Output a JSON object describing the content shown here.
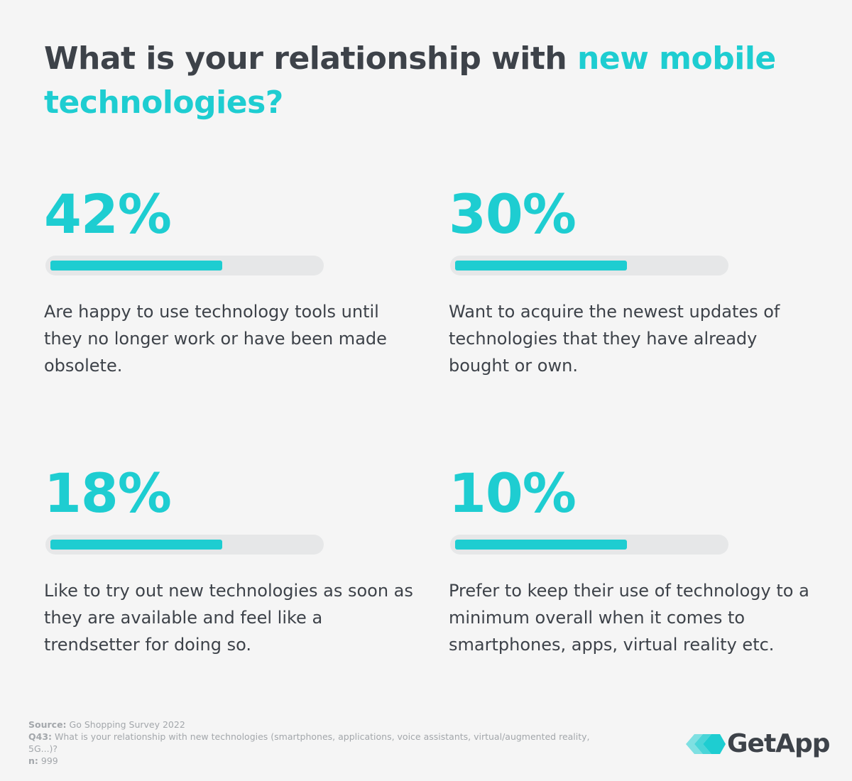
{
  "header": {
    "title_start": "What is your relationship with ",
    "title_highlight": "new mobile technologies?"
  },
  "items": [
    {
      "stat": "42%",
      "text": "Are happy to use technology tools until they no longer work or have been made obsolete."
    },
    {
      "stat": "30%",
      "text": "Want to acquire the newest updates of technologies that they have already bought or own."
    },
    {
      "stat": "18%",
      "text": "Like to try out new technologies as soon as they are available and feel like a trendsetter for doing so."
    },
    {
      "stat": "10%",
      "text": "Prefer to keep their use of technology to a minimum overall when it comes to smartphones, apps, virtual reality etc."
    }
  ],
  "footer": {
    "source_label": "Source:",
    "source": "Go Shopping Survey 2022",
    "question_label": "Q43:",
    "question": "What is your relationship with new technologies (smartphones, applications, voice assistants, virtual/augmented reality, 5G...)?",
    "n_label": "n:",
    "n": "999"
  },
  "logo": {
    "text": "GetApp"
  }
}
